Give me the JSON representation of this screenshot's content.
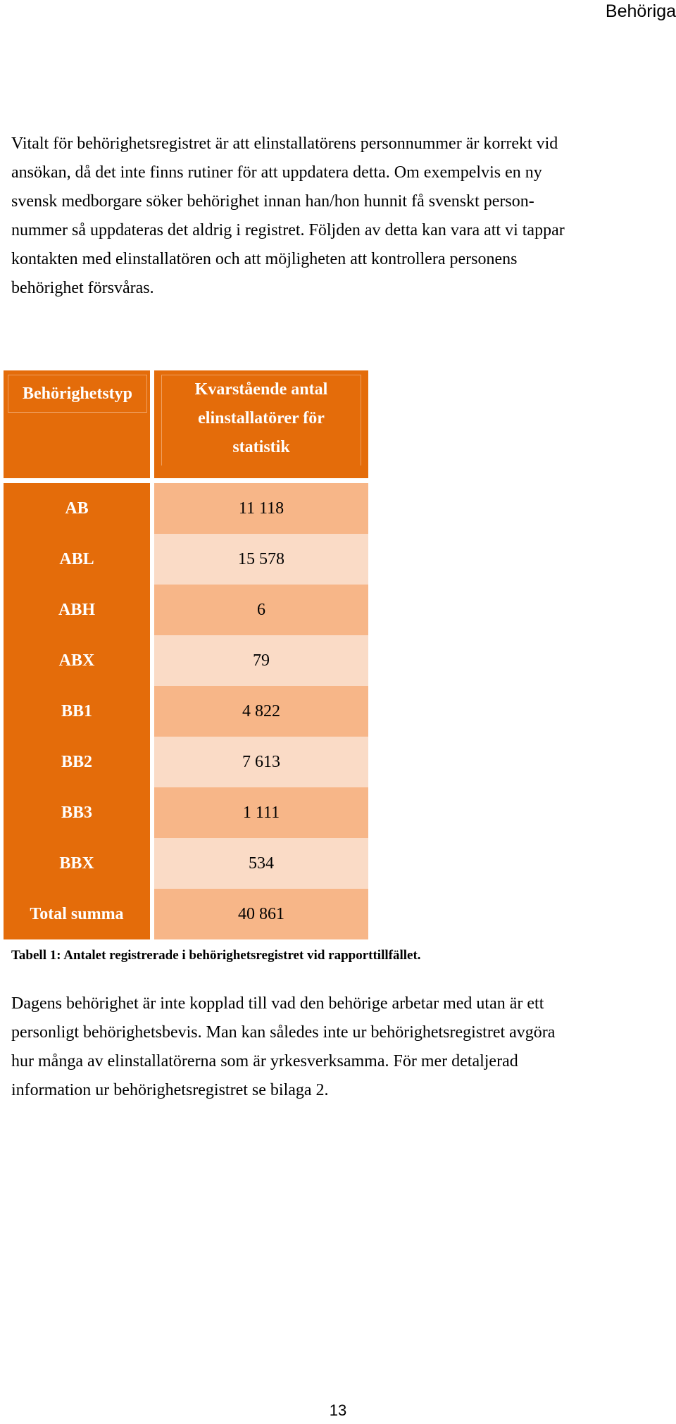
{
  "header": {
    "title": "Behöriga"
  },
  "paragraph_1": {
    "lines": [
      "Vitalt för behörighetsregistret är att elinstallatörens personnummer är korrekt vid",
      "ansökan, då det inte finns rutiner för att uppdatera detta. Om exempelvis en ny",
      "svensk medborgare söker behörighet innan han/hon hunnit få svenskt person-",
      "nummer så uppdateras det aldrig i registret. Följden av detta kan vara att vi tappar",
      "kontakten med elinstallatören och att möjligheten att kontrollera personens",
      "behörighet försvåras."
    ]
  },
  "table": {
    "col_type_header": "Behörighetstyp",
    "col_count_header": [
      "Kvarstående antal",
      "elinstallatörer för",
      "statistik"
    ],
    "rows": [
      {
        "type": "AB",
        "count": "11 118"
      },
      {
        "type": "ABL",
        "count": "15 578"
      },
      {
        "type": "ABH",
        "count": "6"
      },
      {
        "type": "ABX",
        "count": "79"
      },
      {
        "type": "BB1",
        "count": "4 822"
      },
      {
        "type": "BB2",
        "count": "7 613"
      },
      {
        "type": "BB3",
        "count": "1 111"
      },
      {
        "type": "BBX",
        "count": "534"
      }
    ],
    "total": {
      "type": "Total summa",
      "count": "40 861"
    },
    "colors": {
      "header": "#e46c0a",
      "type_cell": "#e46c0a",
      "value_dark": "#f7b688",
      "value_light": "#fadbc6"
    }
  },
  "caption": "Tabell 1: Antalet registrerade i behörighetsregistret vid rapporttillfället.",
  "paragraph_2": {
    "lines": [
      "Dagens behörighet är inte kopplad till vad den behörige arbetar med utan är ett",
      "personligt behörighetsbevis. Man kan således inte ur behörighetsregistret avgöra",
      "hur många av elinstallatörerna som är yrkesverksamma. För mer detaljerad",
      "information ur behörighetsregistret se bilaga 2."
    ]
  },
  "page_number": "13"
}
